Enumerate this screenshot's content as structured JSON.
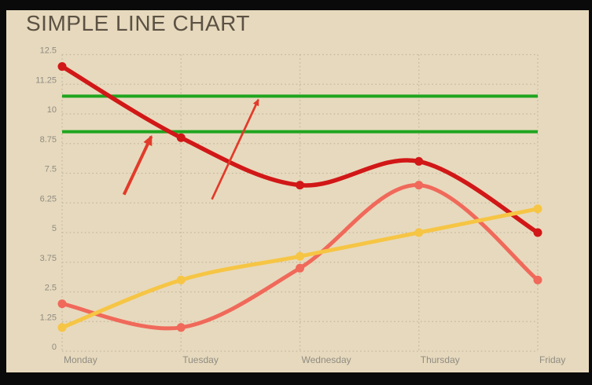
{
  "title": "SIMPLE LINE CHART",
  "colors": {
    "frame": "#0a0a0a",
    "panel_background": "#e7d9bd",
    "title": "#5b5244",
    "axis_label": "#8f8c83",
    "gridline": "#c3b89f",
    "series_bold_red": "#d11717",
    "series_light_red": "#f0695a",
    "series_yellow": "#f6c544",
    "stripline_green": "#1fa51f",
    "arrow_red": "#e23a2a"
  },
  "chart_data": {
    "type": "line",
    "title": "SIMPLE LINE CHART",
    "smooth": true,
    "grid": true,
    "legend": "none",
    "categories": [
      "Monday",
      "Tuesday",
      "Wednesday",
      "Thursday",
      "Friday"
    ],
    "series": [
      {
        "name": "light-red-line",
        "color": "#f0695a",
        "line_width": 5,
        "marker_radius": 5.5,
        "values": [
          2,
          1,
          3.5,
          7,
          3
        ]
      },
      {
        "name": "bold-red-line",
        "color": "#d11717",
        "line_width": 5.5,
        "marker_radius": 5.5,
        "values": [
          12,
          9,
          7,
          8,
          5
        ]
      },
      {
        "name": "yellow-line",
        "color": "#f6c544",
        "line_width": 5,
        "marker_radius": 5.5,
        "values": [
          1,
          3,
          4,
          5,
          6
        ]
      }
    ],
    "striplines": [
      {
        "value": 10.75,
        "color": "#1fa51f",
        "width": 4
      },
      {
        "value": 9.25,
        "color": "#1fa51f",
        "width": 4
      }
    ],
    "annotations": [
      {
        "type": "arrow",
        "from": {
          "x": 0.52,
          "y": 6.6
        },
        "to": {
          "x": 0.75,
          "y": 9.05
        },
        "color": "#e23a2a",
        "width": 4
      },
      {
        "type": "arrow",
        "from": {
          "x": 1.26,
          "y": 6.4
        },
        "to": {
          "x": 1.65,
          "y": 10.6
        },
        "color": "#e23a2a",
        "width": 2.7
      }
    ],
    "x_axis": {
      "label": ""
    },
    "y_axis": {
      "min": 0,
      "max": 12.5,
      "interval": 1.25,
      "ticks": [
        "0",
        "1.25",
        "2.5",
        "3.75",
        "5",
        "6.25",
        "7.5",
        "8.75",
        "10",
        "11.25",
        "12.5"
      ]
    }
  }
}
